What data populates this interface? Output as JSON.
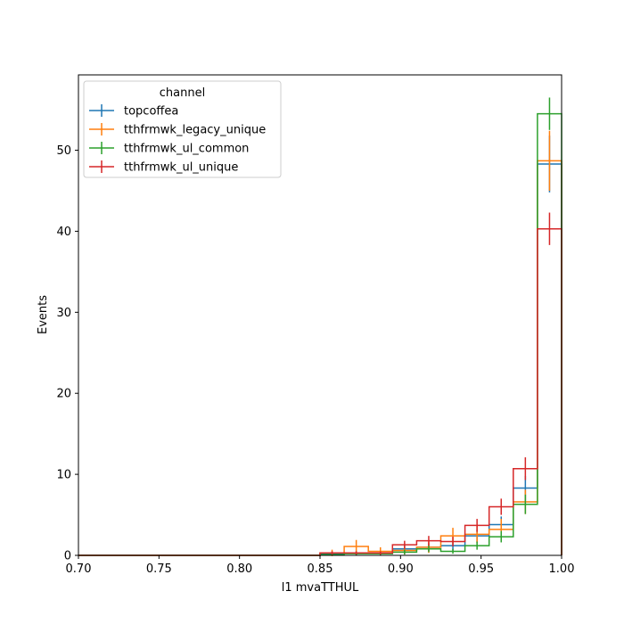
{
  "chart_data": {
    "type": "histogram-step",
    "xlabel": "l1 mvaTTHUL",
    "ylabel": "Events",
    "xlim": [
      0.7,
      1.0
    ],
    "ylim": [
      0,
      59.3
    ],
    "xticks": [
      "0.70",
      "0.75",
      "0.80",
      "0.85",
      "0.90",
      "0.95",
      "1.00"
    ],
    "xtick_values": [
      0.7,
      0.75,
      0.8,
      0.85,
      0.9,
      0.95,
      1.0
    ],
    "yticks": [
      "0",
      "10",
      "20",
      "30",
      "40",
      "50"
    ],
    "ytick_values": [
      0,
      10,
      20,
      30,
      40,
      50
    ],
    "bin_edges": [
      0.7,
      0.715,
      0.73,
      0.745,
      0.76,
      0.775,
      0.79,
      0.805,
      0.82,
      0.835,
      0.85,
      0.865,
      0.88,
      0.895,
      0.91,
      0.925,
      0.94,
      0.955,
      0.97,
      0.985,
      1.0
    ],
    "legend": {
      "title": "channel",
      "placement": "upper-left"
    },
    "series": [
      {
        "name": "topcoffea",
        "color": "#1f77b4",
        "values": [
          0,
          0,
          0,
          0,
          0,
          0,
          0,
          0,
          0,
          0,
          0.2,
          0.3,
          0.3,
          0.8,
          1.0,
          1.2,
          2.4,
          3.8,
          8.3,
          48.3
        ],
        "errors": [
          0,
          0,
          0,
          0,
          0,
          0,
          0,
          0,
          0,
          0,
          0.2,
          0.3,
          0.3,
          0.5,
          0.5,
          0.6,
          0.8,
          1.0,
          1.5,
          3.5
        ]
      },
      {
        "name": "tthfrmwk_legacy_unique",
        "color": "#ff7f0e",
        "values": [
          0,
          0,
          0,
          0,
          0,
          0,
          0,
          0,
          0,
          0,
          0.3,
          1.1,
          0.5,
          0.6,
          1.0,
          2.4,
          2.6,
          3.2,
          6.6,
          48.7
        ],
        "errors": [
          0,
          0,
          0,
          0,
          0,
          0,
          0,
          0,
          0,
          0,
          0.4,
          0.8,
          0.5,
          0.5,
          0.7,
          1.0,
          1.1,
          1.3,
          1.5,
          3.7
        ]
      },
      {
        "name": "tthfrmwk_ul_common",
        "color": "#2ca02c",
        "values": [
          0,
          0,
          0,
          0,
          0,
          0,
          0,
          0,
          0,
          0,
          0.1,
          0.2,
          0.2,
          0.4,
          0.8,
          0.5,
          1.2,
          2.3,
          6.3,
          54.5
        ],
        "errors": [
          0,
          0,
          0,
          0,
          0,
          0,
          0,
          0,
          0,
          0,
          0.1,
          0.2,
          0.2,
          0.3,
          0.4,
          0.3,
          0.5,
          0.7,
          1.2,
          2.0
        ]
      },
      {
        "name": "tthfrmwk_ul_unique",
        "color": "#d62728",
        "values": [
          0,
          0,
          0,
          0,
          0,
          0,
          0,
          0,
          0,
          0,
          0.3,
          0.3,
          0.3,
          1.3,
          1.8,
          1.7,
          3.7,
          6.0,
          10.7,
          40.3
        ],
        "errors": [
          0,
          0,
          0,
          0,
          0,
          0,
          0,
          0,
          0,
          0,
          0.2,
          0.2,
          0.2,
          0.5,
          0.6,
          0.6,
          0.8,
          1.0,
          1.4,
          2.0
        ]
      }
    ]
  }
}
